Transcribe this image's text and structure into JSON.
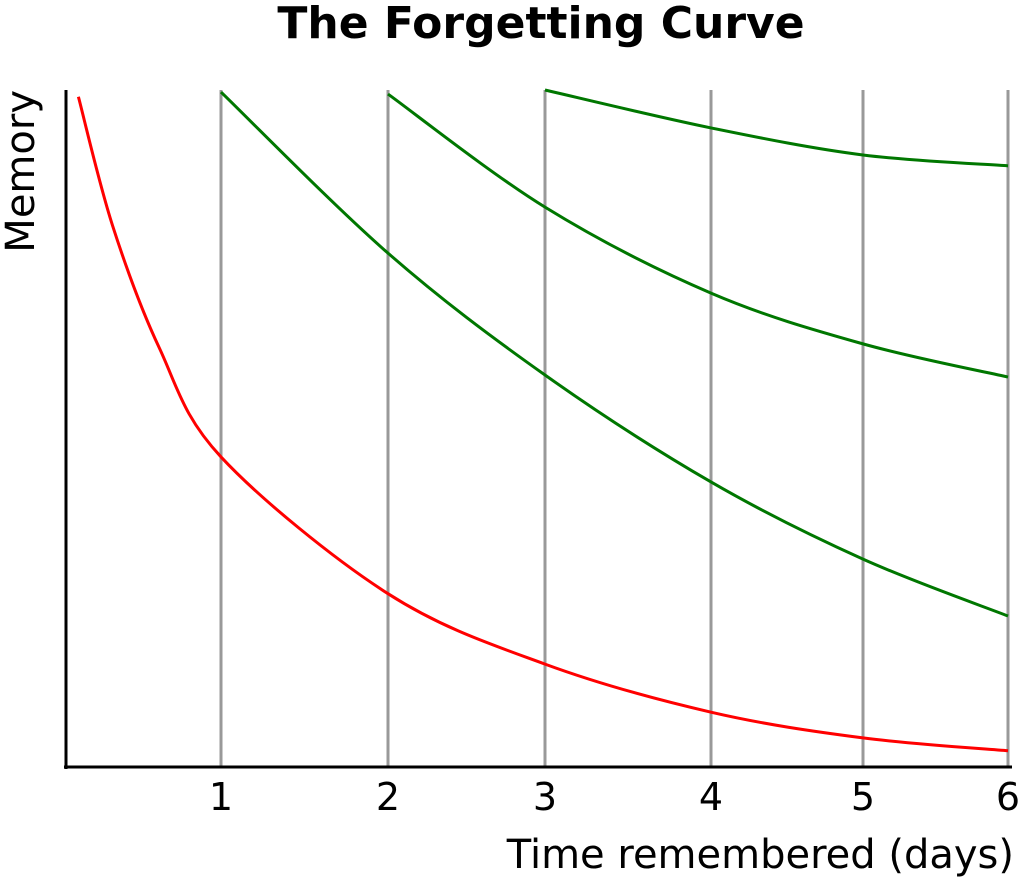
{
  "chart_data": {
    "type": "line",
    "title": "The Forgetting Curve",
    "xlabel": "Time remembered (days)",
    "ylabel": "Memory",
    "xticks": [
      "1",
      "2",
      "3",
      "4",
      "5",
      "6"
    ],
    "xlim": [
      0,
      6
    ],
    "ylim": [
      0,
      100
    ],
    "grid": "vertical lines at each day",
    "legend": "none",
    "series": [
      {
        "color": "#ff0000",
        "x": [
          0.08,
          0.3,
          0.6,
          1,
          2,
          3,
          4,
          5,
          6
        ],
        "y": [
          99,
          80,
          62,
          45.8,
          25.6,
          15.2,
          8.1,
          4.3,
          2.4
        ]
      },
      {
        "color": "#007700",
        "x": [
          1,
          2,
          3,
          4,
          5,
          6
        ],
        "y": [
          99.7,
          75.9,
          57.9,
          42.1,
          30.7,
          22.3
        ]
      },
      {
        "color": "#007700",
        "x": [
          2,
          3,
          4,
          5,
          6
        ],
        "y": [
          99.4,
          82.7,
          70.0,
          62.5,
          57.6
        ]
      },
      {
        "color": "#007700",
        "x": [
          3,
          4,
          5,
          6
        ],
        "y": [
          100,
          94.4,
          90.4,
          88.8
        ]
      }
    ],
    "colors": {
      "axis": "#000000",
      "gridline": "#999999"
    }
  }
}
